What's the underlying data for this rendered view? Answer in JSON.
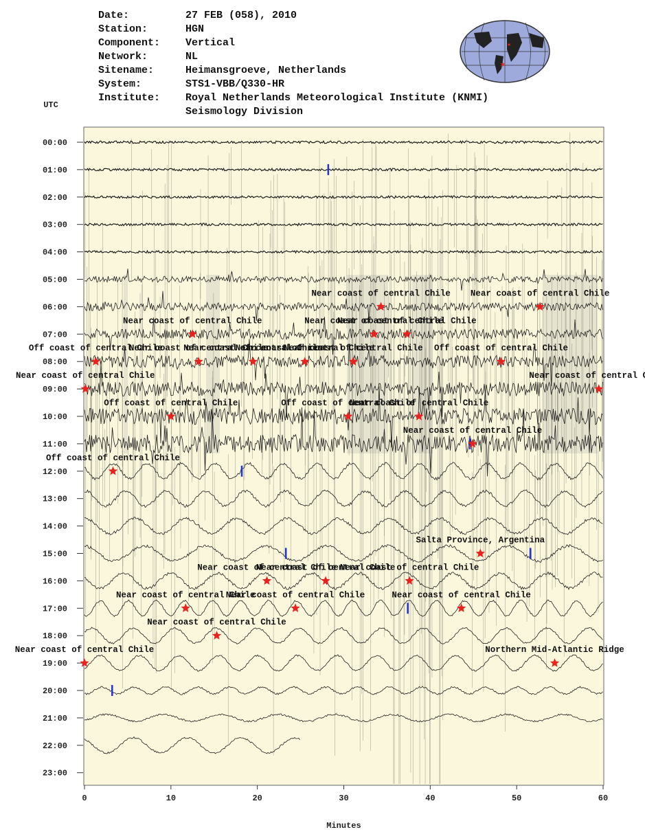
{
  "chart_data": {
    "type": "helicorder",
    "header": [
      {
        "label": "Date:",
        "value": [
          "27 FEB (058), 2010"
        ]
      },
      {
        "label": "Station:",
        "value": [
          "HGN"
        ]
      },
      {
        "label": "Component:",
        "value": [
          "Vertical"
        ]
      },
      {
        "label": "Network:",
        "value": [
          "NL"
        ]
      },
      {
        "label": "Sitename:",
        "value": [
          "Heimansgroeve, Netherlands"
        ]
      },
      {
        "label": "System:",
        "value": [
          "STS1-VBB/Q330-HR"
        ]
      },
      {
        "label": "Institute:",
        "value": [
          "Royal Netherlands Meteorological Institute (KNMI)",
          "Seismology Division"
        ]
      }
    ],
    "ylabel": "UTC",
    "xlabel": "Minutes",
    "categories": [
      "00:00",
      "01:00",
      "02:00",
      "03:00",
      "04:00",
      "05:00",
      "06:00",
      "07:00",
      "08:00",
      "09:00",
      "10:00",
      "11:00",
      "12:00",
      "13:00",
      "14:00",
      "15:00",
      "16:00",
      "17:00",
      "18:00",
      "19:00",
      "20:00",
      "21:00",
      "22:00",
      "23:00"
    ],
    "xlim": [
      0,
      60
    ],
    "xticks": [
      0,
      10,
      20,
      30,
      40,
      50,
      60
    ],
    "event_color": "#e8231f",
    "marker_color": "#2233cc",
    "events": [
      {
        "label": "Near coast of central Chile",
        "hour": 6,
        "minute": 34.3
      },
      {
        "label": "Near coast of central Chile",
        "hour": 6,
        "minute": 52.7
      },
      {
        "label": "Near coast of central Chile",
        "hour": 7,
        "minute": 12.5
      },
      {
        "label": "Near coast of central Chile",
        "hour": 7,
        "minute": 33.5
      },
      {
        "label": "Near coast of central Chile",
        "hour": 7,
        "minute": 37.3
      },
      {
        "label": "Off coast of central Chile",
        "hour": 8,
        "minute": 1.3
      },
      {
        "label": "Near coast of central Chile",
        "hour": 8,
        "minute": 13.2
      },
      {
        "label": "Near coast of central Chile",
        "hour": 8,
        "minute": 19.5
      },
      {
        "label": "Near coast of central Chile",
        "hour": 8,
        "minute": 25.5
      },
      {
        "label": "Near coast of central Chile",
        "hour": 8,
        "minute": 31.1
      },
      {
        "label": "Off coast of central Chile",
        "hour": 8,
        "minute": 48.2
      },
      {
        "label": "Near coast of central Chile",
        "hour": 9,
        "minute": 0.1
      },
      {
        "label": "Near coast of central Chile",
        "hour": 9,
        "minute": 59.5
      },
      {
        "label": "Off coast of central Chile",
        "hour": 10,
        "minute": 10.0
      },
      {
        "label": "Off coast of central Chile",
        "hour": 10,
        "minute": 30.5
      },
      {
        "label": "Near coast of central Chile",
        "hour": 10,
        "minute": 38.7
      },
      {
        "label": "Near coast of central Chile",
        "hour": 11,
        "minute": 44.9
      },
      {
        "label": "Off coast of central Chile",
        "hour": 12,
        "minute": 3.3
      },
      {
        "label": "Salta Province, Argentina",
        "hour": 15,
        "minute": 45.8
      },
      {
        "label": "Near coast of central Chile",
        "hour": 16,
        "minute": 21.1
      },
      {
        "label": "Near coast of central Chile",
        "hour": 16,
        "minute": 27.9
      },
      {
        "label": "Near coast of central Chile",
        "hour": 16,
        "minute": 37.6
      },
      {
        "label": "Near coast of central Chile",
        "hour": 17,
        "minute": 11.7
      },
      {
        "label": "Near coast of central Chile",
        "hour": 17,
        "minute": 24.4
      },
      {
        "label": "Near coast of central Chile",
        "hour": 17,
        "minute": 43.6
      },
      {
        "label": "Near coast of central Chile",
        "hour": 18,
        "minute": 15.3
      },
      {
        "label": "Near coast of central Chile",
        "hour": 19,
        "minute": 0.0
      },
      {
        "label": "Northern Mid-Atlantic Ridge",
        "hour": 19,
        "minute": 54.4
      }
    ],
    "markers": [
      {
        "hour": 1,
        "minute": 28.2
      },
      {
        "hour": 11,
        "minute": 44.6
      },
      {
        "hour": 12,
        "minute": 18.2
      },
      {
        "hour": 15,
        "minute": 23.3
      },
      {
        "hour": 15,
        "minute": 51.6
      },
      {
        "hour": 17,
        "minute": 37.4
      },
      {
        "hour": 20,
        "minute": 3.2
      }
    ]
  }
}
